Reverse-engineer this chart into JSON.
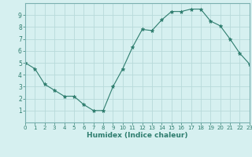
{
  "x": [
    0,
    1,
    2,
    3,
    4,
    5,
    6,
    7,
    8,
    9,
    10,
    11,
    12,
    13,
    14,
    15,
    16,
    17,
    18,
    19,
    20,
    21,
    22,
    23
  ],
  "y": [
    5.0,
    4.5,
    3.2,
    2.7,
    2.2,
    2.2,
    1.5,
    1.0,
    1.0,
    3.0,
    4.5,
    6.3,
    7.8,
    7.7,
    8.6,
    9.3,
    9.3,
    9.5,
    9.5,
    8.5,
    8.1,
    7.0,
    5.8,
    4.9
  ],
  "xlabel": "Humidex (Indice chaleur)",
  "xlim": [
    0,
    23
  ],
  "ylim": [
    0,
    10
  ],
  "xticks": [
    0,
    1,
    2,
    3,
    4,
    5,
    6,
    7,
    8,
    9,
    10,
    11,
    12,
    13,
    14,
    15,
    16,
    17,
    18,
    19,
    20,
    21,
    22,
    23
  ],
  "yticks": [
    1,
    2,
    3,
    4,
    5,
    6,
    7,
    8,
    9
  ],
  "line_color": "#2e7d6e",
  "marker_color": "#2e7d6e",
  "bg_color": "#d6f0f0",
  "grid_color": "#b8dada",
  "spine_color": "#7ab0b0"
}
